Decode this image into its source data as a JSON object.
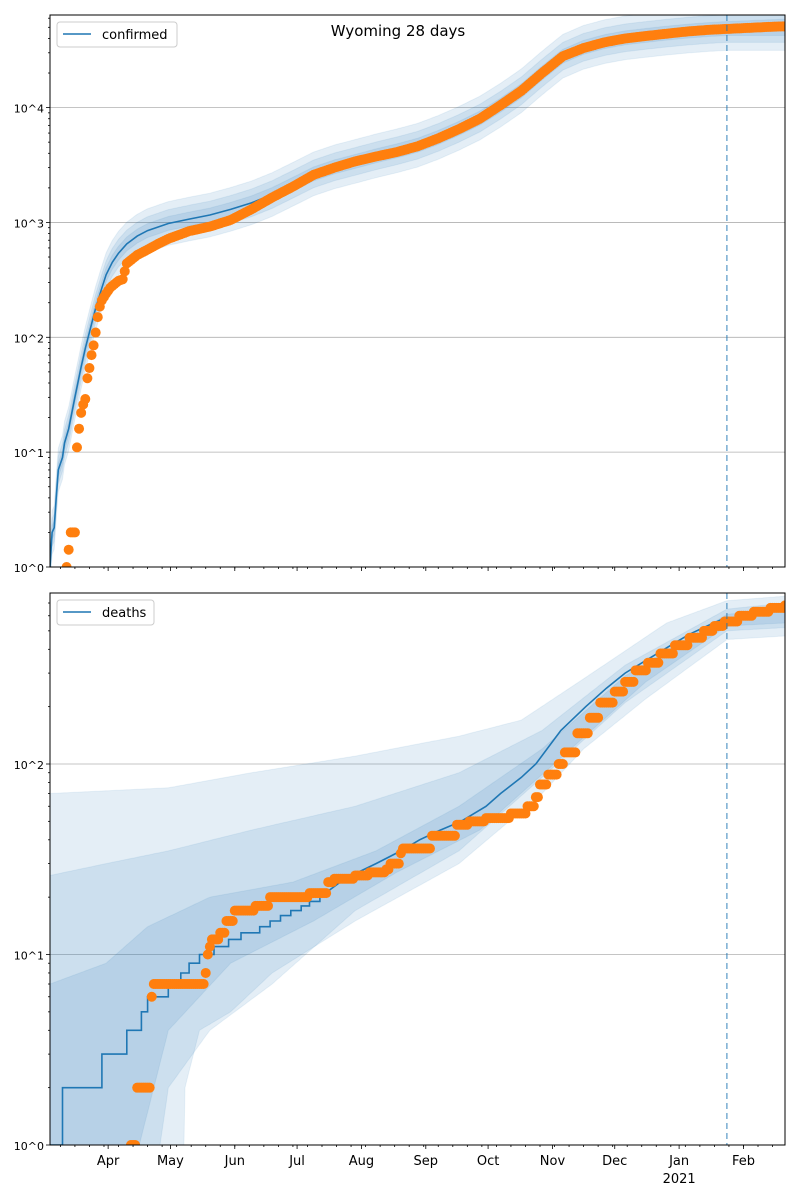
{
  "chart_data": [
    {
      "type": "line",
      "title": "Wyoming 28 days",
      "yscale": "log",
      "ylim": [
        1,
        64000
      ],
      "ytick_labels": [
        "10^0",
        "10^1",
        "10^2",
        "10^3",
        "10^4"
      ],
      "ytick_values": [
        1,
        10,
        100,
        1000,
        10000
      ],
      "x_units": "days since 2020-03-01",
      "xlim": [
        3,
        357
      ],
      "grid": "y-major",
      "legend": {
        "placement": "top-left",
        "entries": [
          "confirmed"
        ]
      },
      "forecast_start_day": 329,
      "band_factors": [
        1.15,
        1.32,
        1.55
      ],
      "model": [
        [
          3,
          1
        ],
        [
          4,
          2
        ],
        [
          5,
          2.2
        ],
        [
          6,
          4
        ],
        [
          7,
          7
        ],
        [
          9,
          9
        ],
        [
          10,
          12
        ],
        [
          12,
          16
        ],
        [
          15,
          30
        ],
        [
          18,
          55
        ],
        [
          20,
          80
        ],
        [
          23,
          130
        ],
        [
          25,
          180
        ],
        [
          28,
          270
        ],
        [
          30,
          350
        ],
        [
          33,
          450
        ],
        [
          36,
          540
        ],
        [
          40,
          650
        ],
        [
          45,
          760
        ],
        [
          50,
          850
        ],
        [
          60,
          980
        ],
        [
          70,
          1070
        ],
        [
          80,
          1160
        ],
        [
          90,
          1300
        ],
        [
          100,
          1480
        ],
        [
          110,
          1750
        ],
        [
          120,
          2150
        ],
        [
          130,
          2650
        ],
        [
          140,
          3050
        ],
        [
          150,
          3400
        ],
        [
          160,
          3800
        ],
        [
          170,
          4200
        ],
        [
          180,
          4700
        ],
        [
          190,
          5500
        ],
        [
          200,
          6600
        ],
        [
          210,
          8100
        ],
        [
          220,
          10500
        ],
        [
          230,
          14000
        ],
        [
          240,
          20000
        ],
        [
          250,
          28000
        ],
        [
          260,
          33500
        ],
        [
          270,
          37500
        ],
        [
          280,
          40500
        ],
        [
          290,
          42500
        ],
        [
          300,
          44500
        ],
        [
          310,
          46300
        ],
        [
          320,
          47800
        ],
        [
          329,
          48800
        ]
      ],
      "observed": [
        [
          11,
          1
        ],
        [
          13,
          2
        ],
        [
          15,
          2
        ],
        [
          16,
          11
        ],
        [
          17,
          16
        ],
        [
          18,
          22
        ],
        [
          19,
          26
        ],
        [
          20,
          29
        ],
        [
          21,
          44
        ],
        [
          22,
          54
        ],
        [
          23,
          70
        ],
        [
          24,
          85
        ],
        [
          25,
          110
        ],
        [
          26,
          150
        ],
        [
          27,
          185
        ],
        [
          28,
          210
        ],
        [
          30,
          240
        ],
        [
          32,
          270
        ],
        [
          34,
          290
        ],
        [
          36,
          310
        ],
        [
          38,
          320
        ],
        [
          40,
          440
        ],
        [
          45,
          520
        ],
        [
          50,
          580
        ],
        [
          55,
          650
        ],
        [
          60,
          720
        ],
        [
          70,
          840
        ],
        [
          80,
          920
        ],
        [
          90,
          1050
        ],
        [
          100,
          1300
        ],
        [
          110,
          1650
        ],
        [
          120,
          2050
        ],
        [
          130,
          2600
        ],
        [
          140,
          3000
        ],
        [
          150,
          3400
        ],
        [
          160,
          3750
        ],
        [
          170,
          4100
        ],
        [
          180,
          4600
        ],
        [
          190,
          5400
        ],
        [
          200,
          6500
        ],
        [
          210,
          8000
        ],
        [
          220,
          10500
        ],
        [
          230,
          14000
        ],
        [
          240,
          20000
        ],
        [
          250,
          28000
        ],
        [
          260,
          33000
        ],
        [
          270,
          37000
        ],
        [
          280,
          40000
        ],
        [
          290,
          42000
        ],
        [
          300,
          44000
        ],
        [
          310,
          46000
        ],
        [
          320,
          47500
        ],
        [
          330,
          48500
        ],
        [
          340,
          49500
        ],
        [
          350,
          50500
        ],
        [
          357,
          51000
        ]
      ]
    },
    {
      "type": "line",
      "yscale": "log",
      "ylim": [
        1,
        790
      ],
      "ytick_labels": [
        "10^0",
        "10^1",
        "10^2"
      ],
      "ytick_values": [
        1,
        10,
        100
      ],
      "x_units": "days since 2020-03-01",
      "xlim": [
        3,
        357
      ],
      "xtick_days": [
        31,
        61,
        92,
        122,
        153,
        184,
        214,
        245,
        275,
        306,
        337
      ],
      "xtick_labels": [
        "Apr",
        "May",
        "Jun",
        "Jul",
        "Aug",
        "Sep",
        "Oct",
        "Nov",
        "Dec",
        "Jan",
        "Feb"
      ],
      "xtick_sublabel": "2021",
      "grid": "y-major",
      "legend": {
        "placement": "top-left",
        "entries": [
          "deaths"
        ]
      },
      "forecast_start_day": 329,
      "model": [
        [
          3,
          1
        ],
        [
          9,
          1
        ],
        [
          9,
          2
        ],
        [
          28,
          2
        ],
        [
          28,
          3
        ],
        [
          40,
          3
        ],
        [
          40,
          4
        ],
        [
          47,
          4
        ],
        [
          47,
          5
        ],
        [
          50,
          5
        ],
        [
          50,
          6
        ],
        [
          60,
          6
        ],
        [
          60,
          7
        ],
        [
          66,
          7
        ],
        [
          66,
          8
        ],
        [
          70,
          8
        ],
        [
          70,
          9
        ],
        [
          75,
          9
        ],
        [
          75,
          10
        ],
        [
          82,
          10
        ],
        [
          82,
          11
        ],
        [
          89,
          11
        ],
        [
          89,
          12
        ],
        [
          95,
          12
        ],
        [
          95,
          13
        ],
        [
          104,
          13
        ],
        [
          104,
          14
        ],
        [
          109,
          14
        ],
        [
          109,
          15
        ],
        [
          114,
          15
        ],
        [
          114,
          16
        ],
        [
          119,
          16
        ],
        [
          119,
          17
        ],
        [
          124,
          17
        ],
        [
          124,
          18
        ],
        [
          128,
          18
        ],
        [
          128,
          19
        ],
        [
          133,
          19
        ],
        [
          133,
          20
        ],
        [
          145,
          25
        ],
        [
          160,
          30
        ],
        [
          172,
          35
        ],
        [
          181,
          40
        ],
        [
          191,
          45
        ],
        [
          201,
          50
        ],
        [
          213,
          60
        ],
        [
          220,
          70
        ],
        [
          230,
          85
        ],
        [
          237,
          100
        ],
        [
          249,
          150
        ],
        [
          261,
          200
        ],
        [
          271,
          250
        ],
        [
          280,
          300
        ],
        [
          290,
          350
        ],
        [
          302,
          420
        ],
        [
          311,
          480
        ],
        [
          321,
          540
        ],
        [
          329,
          590
        ]
      ],
      "bands": [
        {
          "level": "outer",
          "lo": [
            [
              3,
              0.5
            ],
            [
              67,
              0.5
            ],
            [
              68,
              2
            ],
            [
              75,
              4
            ],
            [
              90,
              5
            ],
            [
              110,
              8
            ],
            [
              150,
              15
            ],
            [
              200,
              30
            ],
            [
              240,
              70
            ],
            [
              260,
              120
            ],
            [
              290,
              220
            ],
            [
              329,
              450
            ],
            [
              357,
              470
            ]
          ],
          "hi": [
            [
              3,
              70
            ],
            [
              60,
              75
            ],
            [
              100,
              90
            ],
            [
              150,
              110
            ],
            [
              200,
              140
            ],
            [
              230,
              170
            ],
            [
              260,
              280
            ],
            [
              300,
              550
            ],
            [
              329,
              720
            ],
            [
              357,
              760
            ]
          ]
        },
        {
          "level": "mid",
          "lo": [
            [
              3,
              0.5
            ],
            [
              55,
              0.5
            ],
            [
              56,
              1
            ],
            [
              60,
              2
            ],
            [
              80,
              4
            ],
            [
              110,
              7
            ],
            [
              150,
              17
            ],
            [
              200,
              35
            ],
            [
              240,
              85
            ],
            [
              280,
              210
            ],
            [
              329,
              500
            ],
            [
              357,
              520
            ]
          ],
          "hi": [
            [
              3,
              26
            ],
            [
              30,
              30
            ],
            [
              60,
              35
            ],
            [
              100,
              45
            ],
            [
              150,
              60
            ],
            [
              200,
              90
            ],
            [
              240,
              150
            ],
            [
              280,
              330
            ],
            [
              329,
              650
            ],
            [
              357,
              700
            ]
          ]
        },
        {
          "level": "inner",
          "lo": [
            [
              3,
              0.5
            ],
            [
              45,
              0.5
            ],
            [
              46,
              1
            ],
            [
              60,
              4
            ],
            [
              90,
              9
            ],
            [
              130,
              15
            ],
            [
              170,
              27
            ],
            [
              210,
              45
            ],
            [
              250,
              110
            ],
            [
              290,
              270
            ],
            [
              329,
              530
            ],
            [
              357,
              550
            ]
          ],
          "hi": [
            [
              3,
              7
            ],
            [
              30,
              9
            ],
            [
              50,
              14
            ],
            [
              80,
              20
            ],
            [
              120,
              24
            ],
            [
              160,
              35
            ],
            [
              200,
              60
            ],
            [
              240,
              120
            ],
            [
              280,
              290
            ],
            [
              329,
              610
            ],
            [
              357,
              660
            ]
          ]
        }
      ],
      "observed": [
        [
          42,
          1
        ],
        [
          45,
          1
        ],
        [
          45,
          2
        ],
        [
          52,
          2
        ],
        [
          52,
          6
        ],
        [
          53,
          7
        ],
        [
          77,
          7
        ],
        [
          78,
          8
        ],
        [
          79,
          10
        ],
        [
          80,
          11
        ],
        [
          81,
          12
        ],
        [
          85,
          13
        ],
        [
          88,
          15
        ],
        [
          92,
          17
        ],
        [
          102,
          18
        ],
        [
          109,
          20
        ],
        [
          126,
          20
        ],
        [
          128,
          21
        ],
        [
          137,
          24
        ],
        [
          140,
          25
        ],
        [
          148,
          25
        ],
        [
          150,
          26
        ],
        [
          157,
          27
        ],
        [
          165,
          28
        ],
        [
          167,
          30
        ],
        [
          172,
          34
        ],
        [
          173,
          36
        ],
        [
          186,
          36
        ],
        [
          187,
          42
        ],
        [
          198,
          42
        ],
        [
          199,
          48
        ],
        [
          204,
          48
        ],
        [
          205,
          50
        ],
        [
          213,
          52
        ],
        [
          225,
          55
        ],
        [
          233,
          60
        ],
        [
          237,
          67
        ],
        [
          239,
          78
        ],
        [
          243,
          88
        ],
        [
          248,
          100
        ],
        [
          251,
          115
        ],
        [
          257,
          145
        ],
        [
          263,
          175
        ],
        [
          268,
          210
        ],
        [
          275,
          240
        ],
        [
          280,
          270
        ],
        [
          285,
          310
        ],
        [
          291,
          340
        ],
        [
          297,
          380
        ],
        [
          304,
          420
        ],
        [
          311,
          460
        ],
        [
          318,
          500
        ],
        [
          323,
          530
        ],
        [
          328,
          560
        ],
        [
          335,
          600
        ],
        [
          342,
          630
        ],
        [
          350,
          660
        ],
        [
          357,
          680
        ]
      ]
    }
  ],
  "colors": {
    "line": "#1f77b4",
    "observed": "#ff7f0e",
    "band": "#1f77b4",
    "grid": "#b0b0b0"
  }
}
